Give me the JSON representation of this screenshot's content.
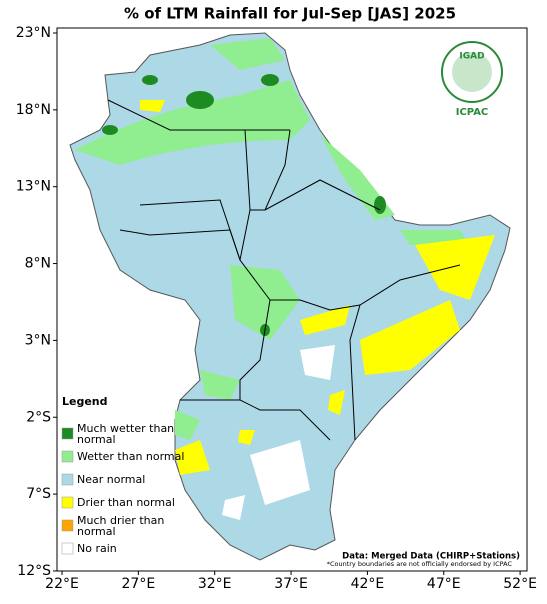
{
  "map": {
    "title": "% of LTM Rainfall for Jul-Sep [JAS] 2025",
    "lat_ticks": [
      {
        "value": 23,
        "label": "23°N"
      },
      {
        "value": 18,
        "label": "18°N"
      },
      {
        "value": 13,
        "label": "13°N"
      },
      {
        "value": 8,
        "label": "8°N"
      },
      {
        "value": 3,
        "label": "3°N"
      },
      {
        "value": -2,
        "label": "2°S"
      },
      {
        "value": -7,
        "label": "7°S"
      },
      {
        "value": -12,
        "label": "12°S"
      }
    ],
    "lon_ticks": [
      {
        "value": 22,
        "label": "22°E"
      },
      {
        "value": 27,
        "label": "27°E"
      },
      {
        "value": 32,
        "label": "32°E"
      },
      {
        "value": 37,
        "label": "37°E"
      },
      {
        "value": 42,
        "label": "42°E"
      },
      {
        "value": 47,
        "label": "47°E"
      },
      {
        "value": 52,
        "label": "52°E"
      }
    ],
    "legend": {
      "title": "Legend",
      "items": [
        {
          "label": "Much wetter than normal",
          "color": "#1e8b22"
        },
        {
          "label": "Wetter than normal",
          "color": "#90ee90"
        },
        {
          "label": "Near normal",
          "color": "#add8e6"
        },
        {
          "label": "Drier than normal",
          "color": "#ffff00"
        },
        {
          "label": "Much drier than normal",
          "color": "#ffa500"
        },
        {
          "label": "No rain",
          "color": "#ffffff"
        }
      ]
    },
    "source": "Data: Merged Data (CHIRP+Stations)",
    "note": "*Country boundaries are not officially endorsed by ICPAC",
    "logo": {
      "name": "IGAD",
      "center": "ICPAC"
    }
  }
}
